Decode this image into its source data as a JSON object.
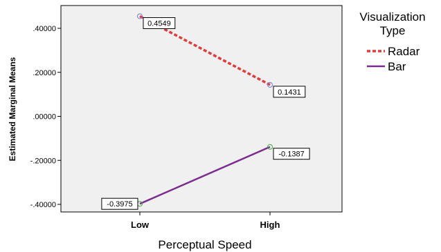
{
  "chart_data": {
    "type": "line",
    "xlabel": "Perceptual Speed",
    "ylabel": "Estimated Marginal Means",
    "categories": [
      "Low",
      "High"
    ],
    "ylim": [
      -0.42,
      0.5
    ],
    "yticks": [
      -0.4,
      -0.2,
      0.0,
      0.2,
      0.4
    ],
    "ytick_labels": [
      "-.40000",
      "-.20000",
      ".00000",
      ".20000",
      ".40000"
    ],
    "legend": {
      "title_lines": [
        "Visualization",
        "Type"
      ],
      "placement": "right"
    },
    "series": [
      {
        "name": "Radar",
        "values": [
          0.4549,
          0.1431
        ],
        "value_labels": [
          "0.4549",
          "0.1431"
        ],
        "color": "#e03c3c",
        "marker_color": "#7a7ad0",
        "dash": true
      },
      {
        "name": "Bar",
        "values": [
          -0.3975,
          -0.1387
        ],
        "value_labels": [
          "-0.3975",
          "-0.1387"
        ],
        "color": "#7b2d8e",
        "marker_color": "#3aaa3a",
        "dash": false
      }
    ]
  }
}
